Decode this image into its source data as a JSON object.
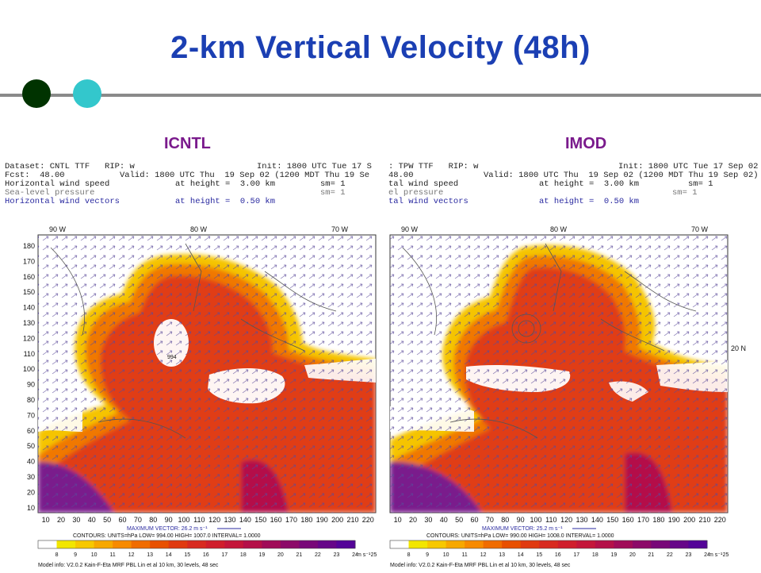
{
  "slide": {
    "title": "2-km Vertical Velocity (48h)",
    "accent_dot1": "#003300",
    "accent_dot2": "#33c7cc"
  },
  "panels": [
    {
      "label": "ICNTL",
      "dataset": "Dataset: CNTL TTF   RIP: w",
      "init": "Init: 1800 UTC Tue 17 S",
      "fcst": "Fcst:  48.00",
      "valid": "Valid: 1800 UTC Thu  19 Sep 02 (1200 MDT Thu 19 Se",
      "f1": "Horizontal wind speed",
      "f1h": "at height =  3.00 km",
      "f2": "Sea-level pressure",
      "f2h": "sm= 1",
      "f2hb": "sm= 1",
      "f3": "Horizontal wind vectors",
      "f3h": "at height =  0.50 km",
      "max_vector": "MAXIMUM VECTOR:  26.2 m s⁻¹",
      "contours": "CONTOURS:  UNITS=hPa   LOW=  994.00      HIGH= 1007.0      INTERVAL=  1.0000",
      "model_info": "Model info: V2.0.2  Kain-F-Eta MRF PBL    Lin et al    10 km, 30 levels,  48 sec"
    },
    {
      "label": "IMOD",
      "dataset": ": TPW TTF   RIP: w",
      "init": "Init: 1800 UTC Tue 17 Sep 02",
      "fcst": "48.00",
      "valid": "Valid: 1800 UTC Thu  19 Sep 02 (1200 MDT Thu 19 Sep 02)",
      "f1": "tal wind speed",
      "f1h": "at height =  3.00 km",
      "f2": "el pressure",
      "f2h": "sm= 1",
      "f2hb": "sm= 1",
      "f3": "tal wind vectors",
      "f3h": "at height =  0.50 km",
      "max_vector": "MAXIMUM VECTOR:  25.2 m s⁻¹",
      "contours": "CONTOURS:  UNITS=hPa   LOW=  990.00      HIGH= 1008.0      INTERVAL=  1.0000",
      "model_info": "Model info: V2.0.2  Kain-F-Eta MRF PBL    Lin et al    10 km, 30 levels,  48 sec"
    }
  ],
  "map_labels": {
    "lon": [
      "90 W",
      "80 W",
      "70 W"
    ],
    "lat_right": "20 N",
    "yticks": [
      "180",
      "170",
      "160",
      "150",
      "140",
      "130",
      "120",
      "110",
      "100",
      "90",
      "80",
      "70",
      "60",
      "50",
      "40",
      "30",
      "20",
      "10"
    ],
    "xticks": [
      "10",
      "20",
      "30",
      "40",
      "50",
      "60",
      "70",
      "80",
      "90",
      "100",
      "110",
      "120",
      "130",
      "140",
      "150",
      "160",
      "170",
      "180",
      "190",
      "200",
      "210",
      "220"
    ],
    "colorbar_ticks": [
      "8",
      "9",
      "10",
      "11",
      "12",
      "13",
      "14",
      "15",
      "16",
      "17",
      "18",
      "19",
      "20",
      "21",
      "22",
      "23",
      "24",
      "25"
    ],
    "colorbar_unit": "m s⁻¹",
    "colorbar_colors": [
      "#ffffff",
      "#f2e600",
      "#f7c800",
      "#f7a800",
      "#f78a00",
      "#f06c00",
      "#e85000",
      "#e03a10",
      "#d82a20",
      "#d01e2c",
      "#c4163a",
      "#b41048",
      "#a00c58",
      "#8c0a68",
      "#780878",
      "#660688",
      "#540498"
    ]
  }
}
